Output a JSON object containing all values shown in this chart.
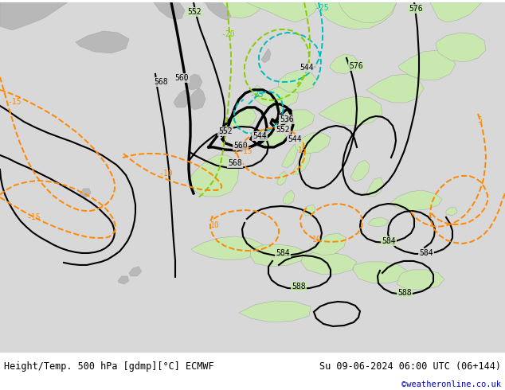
{
  "title_left": "Height/Temp. 500 hPa [gdmp][°C] ECMWF",
  "title_right": "Su 09-06-2024 06:00 UTC (06+144)",
  "credit": "©weatheronline.co.uk",
  "credit_color": "#0000cc",
  "ocean_color": "#d8d8d8",
  "land_green": "#c8e8b0",
  "land_gray": "#b8b8b8",
  "title_fontsize": 8.5,
  "credit_fontsize": 7.5,
  "label_fontsize": 7,
  "geo_color": "#000000",
  "temp_orange": "#ff8800",
  "temp_cyan": "#00bbbb",
  "temp_green": "#88cc00",
  "lw_geo_thin": 1.5,
  "lw_geo_bold": 2.4,
  "lw_temp": 1.4
}
